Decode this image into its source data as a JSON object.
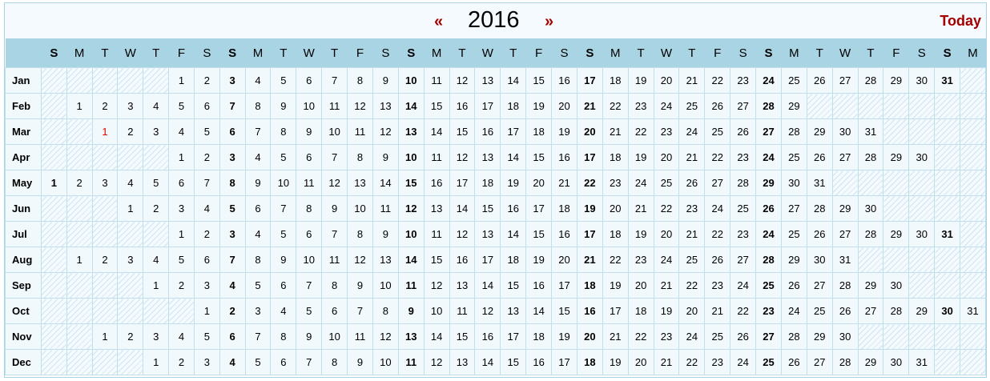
{
  "header": {
    "prev_symbol": "«",
    "year": "2016",
    "next_symbol": "»",
    "today_label": "Today"
  },
  "weekdays": [
    "S",
    "M",
    "T",
    "W",
    "T",
    "F",
    "S",
    "S",
    "M",
    "T",
    "W",
    "T",
    "F",
    "S",
    "S",
    "M",
    "T",
    "W",
    "T",
    "F",
    "S",
    "S",
    "M",
    "T",
    "W",
    "T",
    "F",
    "S",
    "S",
    "M",
    "T",
    "W",
    "T",
    "F",
    "S",
    "S",
    "M"
  ],
  "months": [
    {
      "label": "Jan",
      "offset": 5,
      "days": 31
    },
    {
      "label": "Feb",
      "offset": 1,
      "days": 29
    },
    {
      "label": "Mar",
      "offset": 2,
      "days": 31
    },
    {
      "label": "Apr",
      "offset": 5,
      "days": 30
    },
    {
      "label": "May",
      "offset": 0,
      "days": 31
    },
    {
      "label": "Jun",
      "offset": 3,
      "days": 30
    },
    {
      "label": "Jul",
      "offset": 5,
      "days": 31
    },
    {
      "label": "Aug",
      "offset": 1,
      "days": 31
    },
    {
      "label": "Sep",
      "offset": 4,
      "days": 30
    },
    {
      "label": "Oct",
      "offset": 6,
      "days": 31
    },
    {
      "label": "Nov",
      "offset": 2,
      "days": 30
    },
    {
      "label": "Dec",
      "offset": 4,
      "days": 31
    }
  ],
  "highlight": {
    "month": "Mar",
    "day": 1,
    "color": "#e00000"
  },
  "colors": {
    "accent": "#a50000",
    "header_band": "#a9d4e4",
    "grid_line": "#bfe0ea"
  }
}
